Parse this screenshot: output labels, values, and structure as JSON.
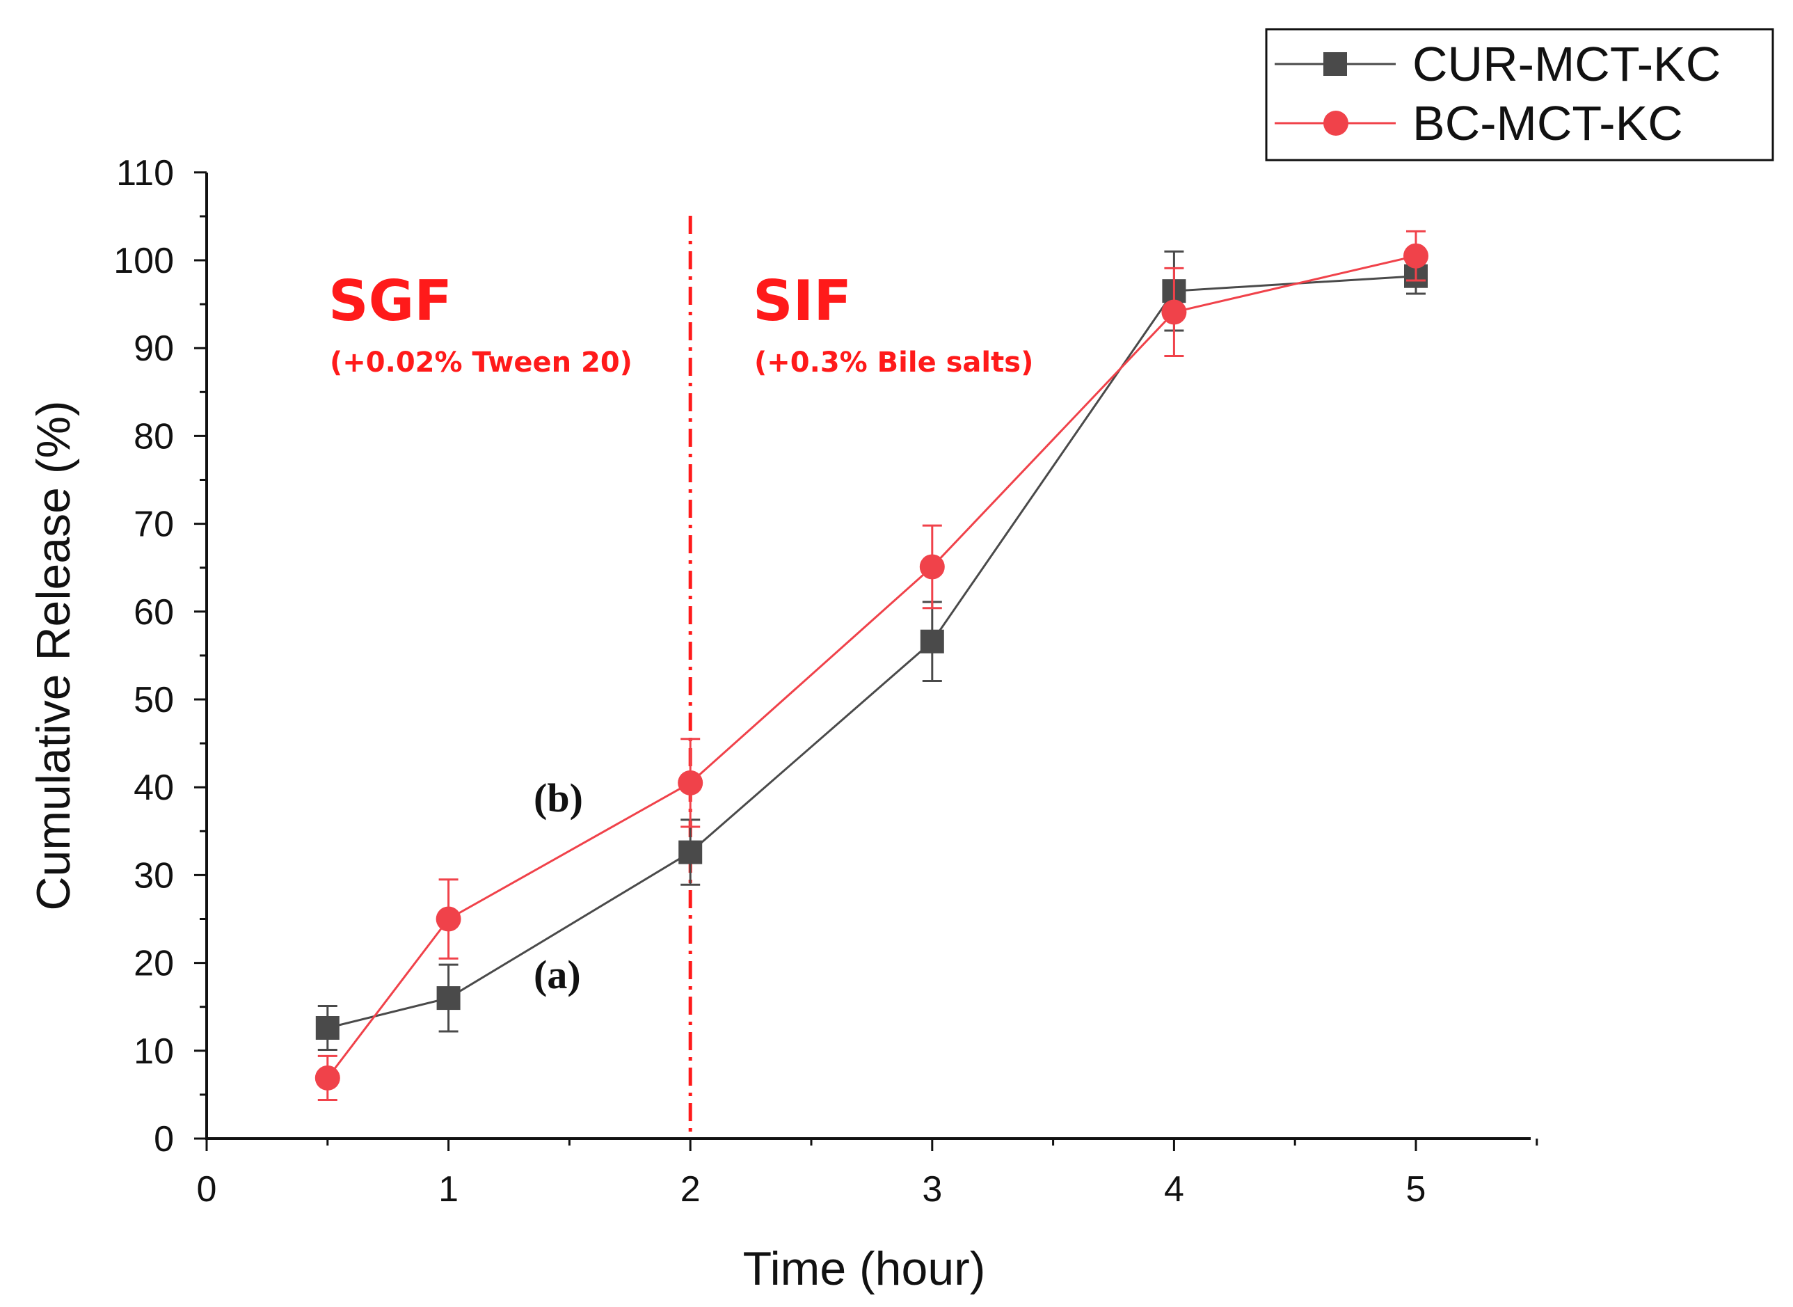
{
  "chart_data": {
    "type": "line",
    "title": "",
    "xlabel": "Time (hour)",
    "ylabel": "Cumulative Release (%)",
    "xlim": [
      0,
      5.5
    ],
    "ylim": [
      0,
      110
    ],
    "x_ticks": [
      "0",
      "1",
      "2",
      "3",
      "4",
      "5"
    ],
    "y_ticks": [
      "0",
      "10",
      "20",
      "30",
      "40",
      "50",
      "60",
      "70",
      "80",
      "90",
      "100",
      "110"
    ],
    "legend_position": "top-right",
    "series": [
      {
        "name": "CUR-MCT-KC",
        "color": "#4a4a4a",
        "marker": "square",
        "x": [
          0.5,
          1,
          2,
          3,
          4,
          5
        ],
        "values": [
          12.6,
          16.0,
          32.6,
          56.6,
          96.5,
          98.2
        ],
        "error": [
          2.5,
          3.8,
          3.7,
          4.5,
          4.5,
          2.0
        ]
      },
      {
        "name": "BC-MCT-KC",
        "color": "#f0424a",
        "marker": "circle",
        "x": [
          0.5,
          1,
          2,
          3,
          4,
          5
        ],
        "values": [
          6.9,
          25.0,
          40.5,
          65.1,
          94.1,
          100.5
        ],
        "error": [
          2.5,
          4.5,
          5.0,
          4.7,
          5.0,
          2.8
        ]
      }
    ],
    "divider_x": 2,
    "annotations": {
      "sgf_title": "SGF",
      "sgf_sub": "(+0.02% Tween 20)",
      "sif_title": "SIF",
      "sif_sub": "(+0.3% Bile salts)",
      "label_b": "(b)",
      "label_a": "(a)"
    },
    "colors": {
      "axis": "#111111",
      "annotation": "#ff1a1a",
      "divider": "#ff1a1a"
    }
  }
}
